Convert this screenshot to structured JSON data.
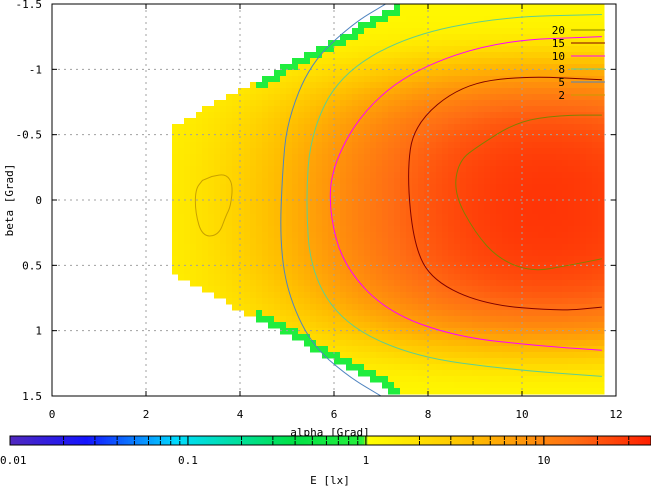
{
  "chart_data": {
    "type": "heatmap",
    "xlabel": "alpha [Grad]",
    "ylabel": "beta [Grad]",
    "colorbar_label": "E [lx]",
    "xlim": [
      0,
      12
    ],
    "ylim": [
      1.5,
      -1.5
    ],
    "x_ticks": [
      0,
      2,
      4,
      6,
      8,
      10,
      12
    ],
    "x_tick_labels": [
      "0",
      "2",
      "4",
      "6",
      "8",
      "10",
      "12"
    ],
    "y_ticks": [
      -1.5,
      -1,
      -0.5,
      0,
      0.5,
      1,
      1.5
    ],
    "y_tick_labels": [
      "-1.5",
      "-1",
      "-0.5",
      "0",
      "0.5",
      "1",
      "1.5"
    ],
    "colorbar_ticks": [
      0.01,
      0.1,
      1,
      10
    ],
    "colorbar_tick_labels": [
      "0.01",
      "0.1",
      "1",
      "10"
    ],
    "colorbar_range": [
      0.01,
      40
    ],
    "colorbar_scale": "log",
    "grid": true,
    "legend_position": "top-right",
    "contour_levels": [
      {
        "level": 20,
        "label": "20",
        "color": "#808000"
      },
      {
        "level": 15,
        "label": "15",
        "color": "#800000"
      },
      {
        "level": 10,
        "label": "10",
        "color": "#ff00ff"
      },
      {
        "level": 8,
        "label": "8",
        "color": "#5fcf8f"
      },
      {
        "level": 5,
        "label": "5",
        "color": "#4f84c0"
      },
      {
        "level": 2,
        "label": "2",
        "color": "#c8a000"
      }
    ],
    "domain": {
      "alpha_min": 2.5,
      "alpha_max": 11.7,
      "beta_halfwidth_at_alpha_min": 0.55,
      "beta_max": 1.5
    },
    "peak": {
      "alpha": 10.5,
      "beta": 0.05,
      "value": 30
    },
    "contours": [
      {
        "level": 2,
        "points": [
          [
            3.4,
            -0.18
          ],
          [
            3.7,
            -0.2
          ],
          [
            3.85,
            -0.12
          ],
          [
            3.8,
            0.05
          ],
          [
            3.7,
            0.12
          ],
          [
            3.55,
            0.27
          ],
          [
            3.2,
            0.28
          ],
          [
            3.05,
            0.1
          ],
          [
            3.05,
            -0.08
          ],
          [
            3.2,
            -0.15
          ]
        ],
        "closed": true
      },
      {
        "level": 5,
        "points": [
          [
            7.1,
            -1.5
          ],
          [
            6.4,
            -1.35
          ],
          [
            5.5,
            -1.05
          ],
          [
            5.0,
            -0.6
          ],
          [
            4.9,
            -0.2
          ],
          [
            4.85,
            0.3
          ],
          [
            5.0,
            0.7
          ],
          [
            5.5,
            1.1
          ],
          [
            6.3,
            1.35
          ],
          [
            7.0,
            1.5
          ]
        ],
        "closed": false
      },
      {
        "level": 8,
        "points": [
          [
            11.7,
            -1.42
          ],
          [
            9.5,
            -1.4
          ],
          [
            7.5,
            -1.25
          ],
          [
            6.1,
            -0.95
          ],
          [
            5.5,
            -0.5
          ],
          [
            5.4,
            0
          ],
          [
            5.5,
            0.55
          ],
          [
            6.2,
            0.95
          ],
          [
            7.7,
            1.2
          ],
          [
            9.8,
            1.3
          ],
          [
            11.7,
            1.35
          ]
        ],
        "closed": false
      },
      {
        "level": 10,
        "points": [
          [
            11.7,
            -1.25
          ],
          [
            9.5,
            -1.22
          ],
          [
            7.7,
            -1.0
          ],
          [
            6.6,
            -0.68
          ],
          [
            5.95,
            -0.25
          ],
          [
            5.9,
            0.1
          ],
          [
            6.2,
            0.5
          ],
          [
            7.1,
            0.85
          ],
          [
            8.6,
            1.05
          ],
          [
            10.5,
            1.12
          ],
          [
            11.7,
            1.15
          ]
        ],
        "closed": false
      },
      {
        "level": 15,
        "points": [
          [
            11.7,
            -0.92
          ],
          [
            10.0,
            -0.95
          ],
          [
            8.7,
            -0.88
          ],
          [
            7.7,
            -0.58
          ],
          [
            7.55,
            -0.2
          ],
          [
            7.7,
            0.35
          ],
          [
            8.1,
            0.62
          ],
          [
            9.2,
            0.8
          ],
          [
            10.8,
            0.85
          ],
          [
            11.7,
            0.82
          ]
        ],
        "closed": false
      },
      {
        "level": 20,
        "points": [
          [
            11.7,
            -0.65
          ],
          [
            10.8,
            -0.65
          ],
          [
            9.9,
            -0.6
          ],
          [
            9.1,
            -0.42
          ],
          [
            8.65,
            -0.3
          ],
          [
            8.55,
            -0.05
          ],
          [
            9.0,
            0.25
          ],
          [
            9.5,
            0.45
          ],
          [
            10.2,
            0.55
          ],
          [
            11.0,
            0.5
          ],
          [
            11.7,
            0.45
          ]
        ],
        "closed": false
      }
    ]
  }
}
